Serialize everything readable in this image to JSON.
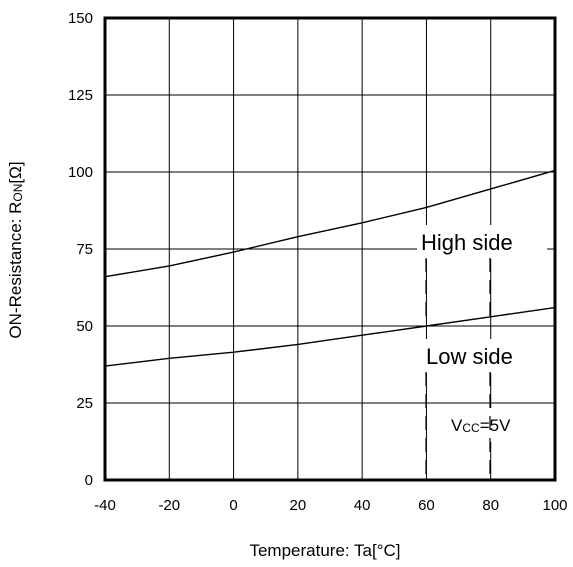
{
  "chart_data": {
    "type": "line",
    "xlabel": "Temperature: Ta[°C]",
    "ylabel_parts": {
      "main": "ON-Resistance: R",
      "sub": "ON",
      "unit": "[Ω]"
    },
    "xlim": [
      -40,
      100
    ],
    "ylim": [
      0,
      150
    ],
    "xticks": [
      -40,
      -20,
      0,
      20,
      40,
      60,
      80,
      100
    ],
    "yticks": [
      0,
      25,
      50,
      75,
      100,
      125,
      150
    ],
    "grid": true,
    "series": [
      {
        "name": "High side",
        "x": [
          -40,
          -20,
          0,
          20,
          40,
          60,
          80,
          100
        ],
        "y": [
          66,
          69.5,
          74,
          79,
          83.5,
          88.5,
          94.5,
          100.5
        ]
      },
      {
        "name": "Low side",
        "x": [
          -40,
          -20,
          0,
          20,
          40,
          60,
          80,
          100
        ],
        "y": [
          37,
          39.5,
          41.5,
          44,
          47,
          50,
          53,
          56
        ]
      }
    ],
    "annotations": {
      "high_side": "High side",
      "low_side": "Low side",
      "condition": {
        "main": "V",
        "sub": "CC",
        "rest": "=5V"
      }
    }
  }
}
